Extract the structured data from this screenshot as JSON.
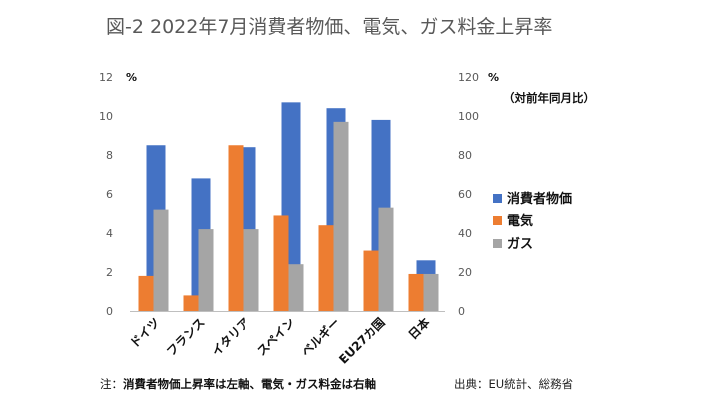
{
  "title": "図-2 2022年7月消費者物価、電気、ガス料金上昇率",
  "chart_data": {
    "type": "bar",
    "categories": [
      "ドイツ",
      "フランス",
      "イタリア",
      "スペイン",
      "ベルギー",
      "EU27カ国",
      "日本"
    ],
    "series": [
      {
        "name": "消費者物価",
        "axis": "left",
        "color": "#4472C4",
        "values": [
          8.5,
          6.8,
          8.4,
          10.7,
          10.4,
          9.8,
          2.6
        ]
      },
      {
        "name": "電気",
        "axis": "right",
        "color": "#ED7D31",
        "values": [
          18,
          8,
          85,
          49,
          44,
          31,
          19
        ]
      },
      {
        "name": "ガス",
        "axis": "right",
        "color": "#A5A5A5",
        "values": [
          52,
          42,
          42,
          24,
          97,
          53,
          19
        ]
      }
    ],
    "y_left": {
      "min": 0,
      "max": 12,
      "ticks": [
        0,
        2,
        4,
        6,
        8,
        10,
        12
      ],
      "unit": "%"
    },
    "y_right": {
      "min": 0,
      "max": 120,
      "ticks": [
        0,
        20,
        40,
        60,
        80,
        100,
        120
      ],
      "unit": "%",
      "label": "（対前年同月比）"
    },
    "legend_position": "right"
  },
  "note_prefix": "注：",
  "note": "消費者物価上昇率は左軸、電気・ガス料金は右軸",
  "source": "出典：EU統計、総務省"
}
